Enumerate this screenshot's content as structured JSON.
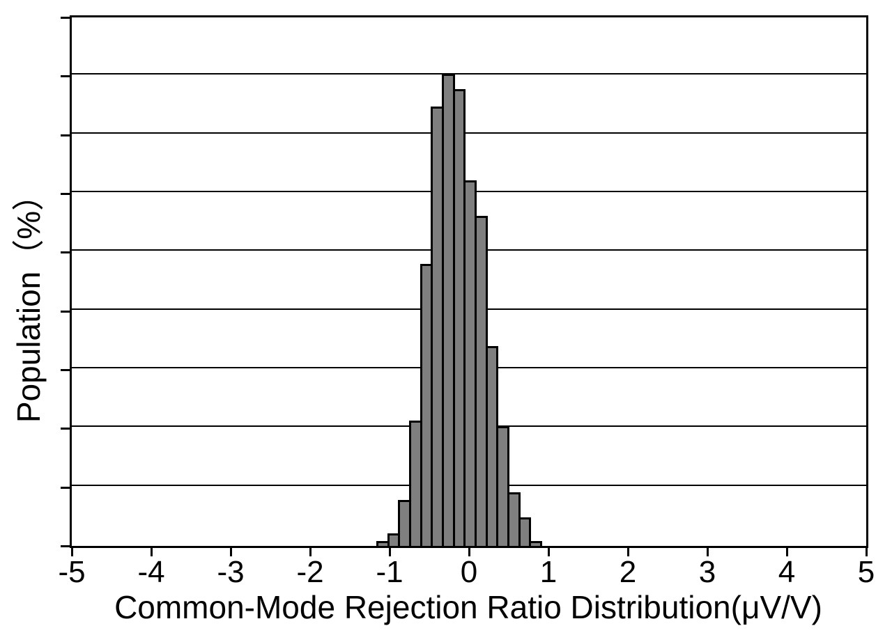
{
  "chart_data": {
    "type": "bar",
    "subtype": "histogram",
    "title": "",
    "xlabel": "Common-Mode Rejection Ratio Distribution(μV/V)",
    "ylabel": "Population（%）",
    "xlim": [
      -5,
      5
    ],
    "x_tick_labels": [
      "-5",
      "-4",
      "-3",
      "-2",
      "-1",
      "0",
      "1",
      "2",
      "3",
      "4",
      "5"
    ],
    "ylim": [
      0,
      18
    ],
    "y_division_pct": 2,
    "y_divisions": 9,
    "y_tick_labels_visible": false,
    "grid": "horizontal",
    "legend": "none",
    "bin_start": -1.14,
    "bin_width": 0.1375,
    "values_pct": [
      0.16,
      0.43,
      1.56,
      4.27,
      9.6,
      14.96,
      16.08,
      15.55,
      12.45,
      11.25,
      6.8,
      4.07,
      1.83,
      0.97,
      0.16
    ],
    "bar_fill_color": "#7f7f7f",
    "bar_border_color": "#000000",
    "axis_color": "#000000",
    "background_color": "#ffffff"
  }
}
